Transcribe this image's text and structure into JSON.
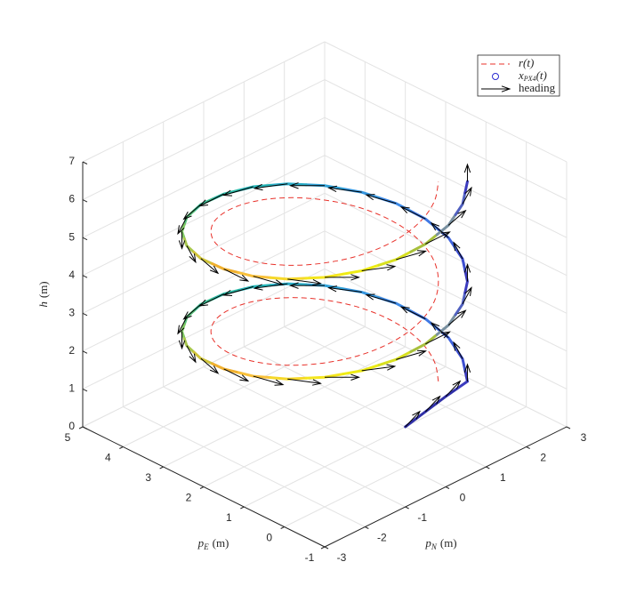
{
  "chart_data": {
    "type": "line3d",
    "xlabel": {
      "base": "p",
      "sub": "N",
      "unit": "(m)"
    },
    "ylabel": {
      "base": "p",
      "sub": "E",
      "unit": "(m)"
    },
    "zlabel": {
      "base": "h",
      "unit": "(m)"
    },
    "xlim": [
      -3,
      3
    ],
    "xticks": [
      -3,
      -2,
      -1,
      0,
      1,
      2,
      3
    ],
    "ylim": [
      -1,
      5
    ],
    "yticks": [
      -1,
      0,
      1,
      2,
      3,
      4,
      5
    ],
    "zlim": [
      0,
      7
    ],
    "zticks": [
      0,
      1,
      2,
      3,
      4,
      5,
      6,
      7
    ],
    "grid": true,
    "legend": "upper right",
    "series": [
      {
        "name": "r(t)",
        "color": "#e8312a",
        "style": "dashed",
        "x": [
          1.41,
          1.73,
          1.93,
          2,
          1.93,
          1.73,
          1.41,
          1,
          0.52,
          0,
          -0.52,
          -1,
          -1.41,
          -1.73,
          -1.93,
          -2,
          -1.93,
          -1.73,
          -1.41,
          -1,
          -0.52,
          0,
          0.52,
          1,
          1.41,
          1.73,
          1.93,
          2,
          1.93,
          1.73,
          1.41,
          1,
          0.52,
          0,
          -0.52,
          -1,
          -1.41,
          -1.73,
          -1.93,
          -2,
          -1.93,
          -1.73,
          -1.41,
          -1,
          -0.52,
          0,
          0.52,
          1,
          1.41
        ],
        "y": [
          0.59,
          1,
          1.48,
          2,
          2.52,
          3,
          3.41,
          3.73,
          3.93,
          4,
          3.93,
          3.73,
          3.41,
          3,
          2.52,
          2,
          1.48,
          1,
          0.59,
          0.27,
          0.07,
          0,
          0.07,
          0.27,
          0.59,
          1,
          1.48,
          2,
          2.52,
          3,
          3.41,
          3.73,
          3.93,
          4,
          3.93,
          3.73,
          3.41,
          3,
          2.52,
          2,
          1.48,
          1,
          0.59,
          0.27,
          0.07,
          0,
          0.07,
          0.27,
          0.59
        ],
        "z": [
          1.2,
          1.31,
          1.42,
          1.53,
          1.64,
          1.75,
          1.86,
          1.97,
          2.08,
          2.19,
          2.3,
          2.41,
          2.52,
          2.63,
          2.74,
          2.85,
          2.96,
          3.07,
          3.18,
          3.29,
          3.4,
          3.51,
          3.62,
          3.73,
          3.84,
          3.95,
          4.06,
          4.17,
          4.28,
          4.39,
          4.5,
          4.61,
          4.72,
          4.83,
          4.94,
          5.05,
          5.16,
          5.27,
          5.38,
          5.49,
          5.6,
          5.71,
          5.82,
          5.93,
          6.04,
          6.15,
          6.26,
          6.37,
          6.48
        ]
      },
      {
        "name": {
          "base": "x",
          "sub": "PX4",
          "tail": "(t)"
        },
        "color": "#2b2bd0",
        "marker": "o",
        "x": [
          1,
          1.25,
          1.5,
          1.77,
          2.17,
          2.42,
          2.5,
          2.42,
          2.17,
          1.77,
          1.25,
          0.65,
          0,
          -0.65,
          -1.25,
          -1.77,
          -2.17,
          -2.42,
          -2.5,
          -2.42,
          -2.17,
          -1.77,
          -1.25,
          -0.65,
          0,
          0.65,
          1.25,
          1.77,
          2.17,
          2.42,
          2.5,
          2.42,
          2.17,
          1.77,
          1.25,
          0.65,
          0,
          -0.65,
          -1.25,
          -1.77,
          -2.17,
          -2.42,
          -2.5,
          -2.42,
          -2.17,
          -1.77,
          -1.25,
          -0.65,
          0,
          0.65,
          1.25,
          1.77
        ],
        "y": [
          1,
          0.75,
          0.5,
          0.23,
          0.75,
          1.35,
          2,
          2.65,
          3.25,
          3.77,
          4.17,
          4.42,
          4.5,
          4.42,
          4.17,
          3.77,
          3.25,
          2.65,
          2,
          1.35,
          0.75,
          0.23,
          -0.17,
          -0.42,
          -0.5,
          -0.42,
          -0.17,
          0.23,
          0.75,
          1.35,
          2,
          2.65,
          3.25,
          3.77,
          4.17,
          4.42,
          4.5,
          4.42,
          4.17,
          3.77,
          3.25,
          2.65,
          2,
          1.35,
          0.75,
          0.23,
          -0.17,
          -0.42,
          -0.5,
          -0.42,
          -0.17,
          0.23
        ],
        "z": [
          0,
          0.4,
          0.8,
          1.2,
          1.31,
          1.42,
          1.53,
          1.64,
          1.75,
          1.86,
          1.97,
          2.08,
          2.19,
          2.3,
          2.41,
          2.52,
          2.63,
          2.74,
          2.85,
          2.96,
          3.07,
          3.18,
          3.29,
          3.4,
          3.51,
          3.62,
          3.73,
          3.84,
          3.95,
          4.06,
          4.17,
          4.28,
          4.39,
          4.5,
          4.61,
          4.72,
          4.83,
          4.94,
          5.05,
          5.16,
          5.27,
          5.38,
          5.49,
          5.6,
          5.71,
          5.82,
          5.93,
          6.04,
          6.15,
          6.26,
          6.37,
          6.48
        ],
        "colors": [
          "#3030a8",
          "#3030a8",
          "#3030a8",
          "#3b3bbf",
          "#3d4fd0",
          "#3f63dc",
          "#3f78e4",
          "#3a88e6",
          "#3596e0",
          "#30a2d8",
          "#2aadc8",
          "#26b5b8",
          "#2cbaa6",
          "#3cbf94",
          "#58c37c",
          "#80c864",
          "#a8c84c",
          "#d0c43a",
          "#f0b02e",
          "#f8c03a",
          "#f6d82a",
          "#f4e61e",
          "#eeec14",
          "#d8e020",
          "#a8c03c",
          "#7890a0",
          "#5060c0",
          "#3b3bbf",
          "#3d4fd0",
          "#3f63dc",
          "#3f78e4",
          "#3a88e6",
          "#3596e0",
          "#30a2d8",
          "#2aadc8",
          "#26b5b8",
          "#2cbaa6",
          "#3cbf94",
          "#58c37c",
          "#80c864",
          "#a8c84c",
          "#d0c43a",
          "#f0b02e",
          "#f8c03a",
          "#f6d82a",
          "#f4e61e",
          "#eeec14",
          "#d8e020",
          "#a8c03c",
          "#7890a0",
          "#5060c0",
          "#3b3bbf"
        ]
      },
      {
        "name": "heading",
        "color": "#000000",
        "values": [
          20,
          20,
          20,
          45,
          60,
          75,
          90,
          105,
          120,
          135,
          150,
          165,
          180,
          195,
          210,
          225,
          240,
          255,
          270,
          285,
          300,
          315,
          330,
          345,
          0,
          15,
          30,
          45,
          60,
          75,
          90,
          105,
          120,
          135,
          150,
          165,
          180,
          195,
          210,
          225,
          240,
          255,
          270,
          285,
          300,
          315,
          330,
          345,
          0,
          15,
          30,
          45
        ]
      }
    ]
  }
}
